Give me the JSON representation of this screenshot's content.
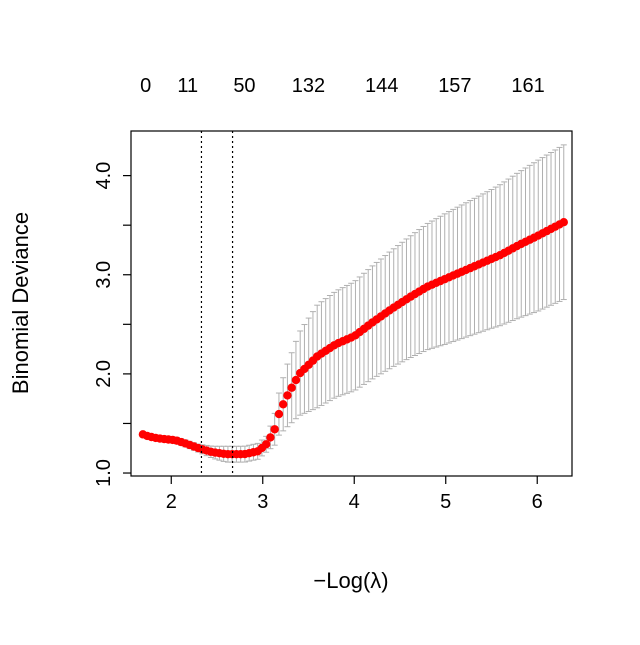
{
  "chart_data": {
    "type": "scatter",
    "xlabel": "−Log(λ)",
    "ylabel": "Binomial Deviance",
    "xlim": [
      1.56,
      6.38
    ],
    "ylim": [
      0.97,
      4.45
    ],
    "x_ticks": [
      "2",
      "3",
      "4",
      "5",
      "6"
    ],
    "y_ticks": [
      "1.0",
      "2.0",
      "3.0",
      "4.0"
    ],
    "top_axis": {
      "positions": [
        1.72,
        2.18,
        2.8,
        3.5,
        4.3,
        5.1,
        5.9
      ],
      "labels": [
        "0",
        "11",
        "50",
        "132",
        "144",
        "157",
        "161"
      ]
    },
    "vlines": [
      2.33,
      2.67
    ],
    "point_color": "#ff0000",
    "errorbar_color": "#b0b0b0",
    "n_points": 100,
    "x_range": [
      1.69,
      6.29
    ],
    "curve_knots": [
      [
        1.69,
        1.39
      ],
      [
        1.75,
        1.37
      ],
      [
        1.85,
        1.35
      ],
      [
        1.95,
        1.34
      ],
      [
        2.05,
        1.33
      ],
      [
        2.15,
        1.3
      ],
      [
        2.3,
        1.25
      ],
      [
        2.45,
        1.21
      ],
      [
        2.6,
        1.19
      ],
      [
        2.8,
        1.19
      ],
      [
        2.95,
        1.22
      ],
      [
        3.05,
        1.3
      ],
      [
        3.13,
        1.44
      ],
      [
        3.17,
        1.58
      ],
      [
        3.25,
        1.75
      ],
      [
        3.4,
        2.0
      ],
      [
        3.6,
        2.18
      ],
      [
        3.8,
        2.3
      ],
      [
        4.0,
        2.38
      ],
      [
        4.2,
        2.52
      ],
      [
        4.4,
        2.65
      ],
      [
        4.6,
        2.77
      ],
      [
        4.8,
        2.88
      ],
      [
        5.0,
        2.96
      ],
      [
        5.2,
        3.04
      ],
      [
        5.4,
        3.12
      ],
      [
        5.6,
        3.2
      ],
      [
        5.8,
        3.3
      ],
      [
        6.0,
        3.39
      ],
      [
        6.29,
        3.53
      ]
    ],
    "err_knots": [
      [
        1.69,
        0.02
      ],
      [
        2.3,
        0.04
      ],
      [
        2.6,
        0.08
      ],
      [
        2.9,
        0.08
      ],
      [
        3.05,
        0.08
      ],
      [
        3.15,
        0.18
      ],
      [
        3.25,
        0.3
      ],
      [
        3.4,
        0.42
      ],
      [
        3.6,
        0.52
      ],
      [
        4.0,
        0.55
      ],
      [
        4.5,
        0.6
      ],
      [
        5.0,
        0.66
      ],
      [
        5.5,
        0.7
      ],
      [
        6.0,
        0.76
      ],
      [
        6.29,
        0.78
      ]
    ]
  }
}
